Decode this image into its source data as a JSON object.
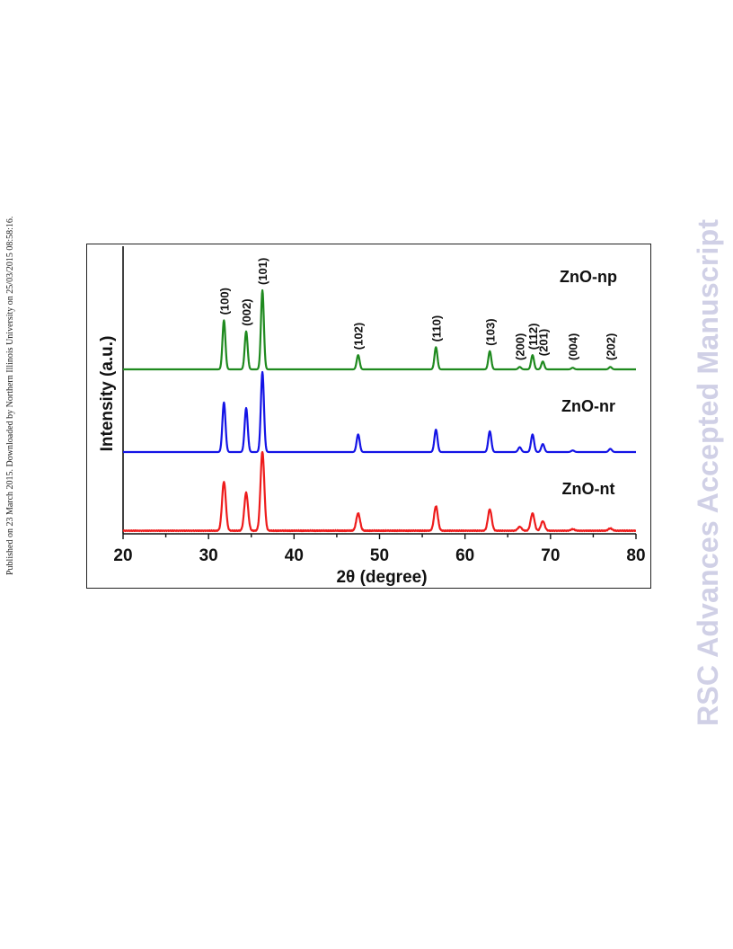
{
  "page": {
    "side_note": "Published on 23 March 2015. Downloaded by Northern Illinois University on 25/03/2015 08:58:16.",
    "watermark": "RSC Advances Accepted Manuscript"
  },
  "chart_data": {
    "type": "line",
    "title": "",
    "xlabel": "2θ (degree)",
    "ylabel": "Intensity (a.u.)",
    "xlim": [
      20,
      80
    ],
    "x_ticks": [
      "20",
      "30",
      "40",
      "50",
      "60",
      "70",
      "80"
    ],
    "grid": false,
    "legend": "none",
    "peak_positions": [
      31.8,
      34.4,
      36.3,
      47.5,
      56.6,
      62.9,
      66.4,
      67.9,
      69.1,
      72.6,
      77.0
    ],
    "peak_labels": [
      {
        "hkl": "(100)",
        "x": 31.8
      },
      {
        "hkl": "(002)",
        "x": 34.4
      },
      {
        "hkl": "(101)",
        "x": 36.3
      },
      {
        "hkl": "(102)",
        "x": 47.5
      },
      {
        "hkl": "(110)",
        "x": 56.6
      },
      {
        "hkl": "(103)",
        "x": 62.9
      },
      {
        "hkl": "(200)",
        "x": 66.4
      },
      {
        "hkl": "(112)",
        "x": 67.9
      },
      {
        "hkl": "(201)",
        "x": 69.1
      },
      {
        "hkl": "(004)",
        "x": 72.6
      },
      {
        "hkl": "(202)",
        "x": 77.0
      }
    ],
    "series": [
      {
        "name": "ZnO-np",
        "color": "#1f8a1f",
        "relative_peak_intensities": [
          0.62,
          0.48,
          1.0,
          0.18,
          0.28,
          0.23,
          0.03,
          0.18,
          0.1,
          0.02,
          0.03
        ]
      },
      {
        "name": "ZnO-nr",
        "color": "#1414e6",
        "relative_peak_intensities": [
          0.62,
          0.55,
          1.0,
          0.22,
          0.28,
          0.26,
          0.06,
          0.22,
          0.1,
          0.02,
          0.04
        ]
      },
      {
        "name": "ZnO-nt",
        "color": "#ee1c1c",
        "relative_peak_intensities": [
          0.62,
          0.48,
          1.0,
          0.22,
          0.31,
          0.27,
          0.05,
          0.22,
          0.12,
          0.02,
          0.03
        ]
      }
    ]
  }
}
